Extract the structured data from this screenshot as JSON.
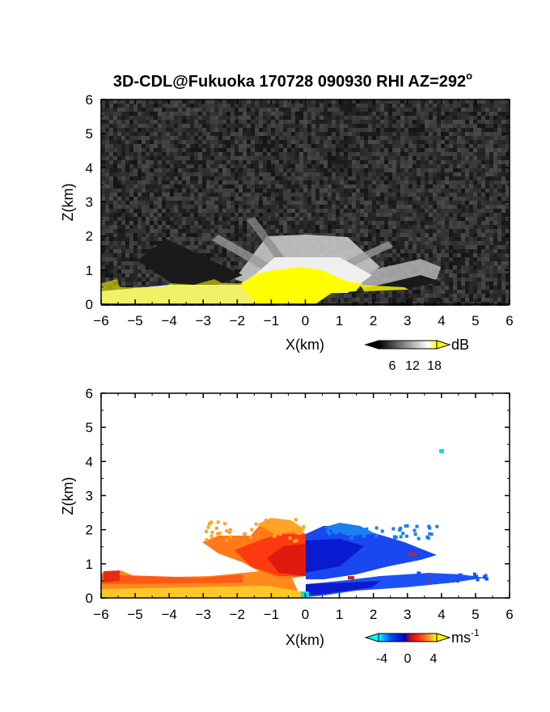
{
  "chart_data": [
    {
      "type": "heatmap",
      "title": "3D-CDL@Fukuoka 170728 090930 RHI AZ=292",
      "title_superscript": "o",
      "xlabel": "X(km)",
      "ylabel": "Z(km)",
      "xlim": [
        -6,
        6
      ],
      "ylim": [
        0,
        6
      ],
      "xticks": [
        "-6",
        "-5",
        "-4",
        "-3",
        "-2",
        "-1",
        "0",
        "1",
        "2",
        "3",
        "4",
        "5",
        "6"
      ],
      "yticks": [
        "0",
        "1",
        "2",
        "3",
        "4",
        "5",
        "6"
      ],
      "quantity": "SNR",
      "colorbar": {
        "unit": "dB",
        "ticks": [
          "6",
          "12",
          "18"
        ],
        "range": [
          0,
          21
        ],
        "colors": {
          "low": "#000000",
          "high": "#ffffff",
          "saturated": "#ffff00"
        }
      },
      "regions": [
        {
          "label": "noise",
          "x": [
            -6,
            6
          ],
          "z": [
            0,
            6
          ],
          "value_db": 3
        },
        {
          "label": "near-field saturation",
          "x": [
            -1.2,
            1.6
          ],
          "z": [
            0,
            1.0
          ],
          "value_db": 19
        },
        {
          "label": "low-level saturation",
          "x": [
            -6,
            3
          ],
          "z": [
            0,
            0.5
          ],
          "value_db": 19
        },
        {
          "label": "clear-air echo fan",
          "x": [
            -3.5,
            5
          ],
          "z": [
            0.3,
            2.2
          ],
          "value_db": 12
        }
      ]
    },
    {
      "type": "heatmap",
      "xlabel": "X(km)",
      "ylabel": "Z(km)",
      "xlim": [
        -6,
        6
      ],
      "ylim": [
        0,
        6
      ],
      "xticks": [
        "-6",
        "-5",
        "-4",
        "-3",
        "-2",
        "-1",
        "0",
        "1",
        "2",
        "3",
        "4",
        "5",
        "6"
      ],
      "yticks": [
        "0",
        "1",
        "2",
        "3",
        "4",
        "5",
        "6"
      ],
      "quantity": "Doppler velocity",
      "colorbar": {
        "unit": "ms",
        "unit_superscript": "-1",
        "ticks": [
          "-4",
          "0",
          "4"
        ],
        "range": [
          -5,
          5
        ],
        "colors": [
          "#00ffff",
          "#0050ff",
          "#0000c0",
          "#c01010",
          "#ff3010",
          "#ff9020",
          "#ffff00"
        ]
      },
      "regions": [
        {
          "label": "inflow layer west",
          "x": [
            -6,
            -1
          ],
          "z": [
            0,
            0.6
          ],
          "velocity": 3.2
        },
        {
          "label": "outflow plume west",
          "x": [
            -3,
            0
          ],
          "z": [
            0.5,
            2.2
          ],
          "velocity": 1.8
        },
        {
          "label": "outflow east upper",
          "x": [
            0,
            4
          ],
          "z": [
            0.6,
            1.9
          ],
          "velocity": -2.8
        },
        {
          "label": "outflow east lower",
          "x": [
            0,
            5.4
          ],
          "z": [
            0.1,
            0.6
          ],
          "velocity": -3.2
        },
        {
          "label": "isolated echo",
          "x": [
            4,
            4.1
          ],
          "z": [
            4.25,
            4.35
          ],
          "velocity": -4.5
        }
      ]
    }
  ]
}
